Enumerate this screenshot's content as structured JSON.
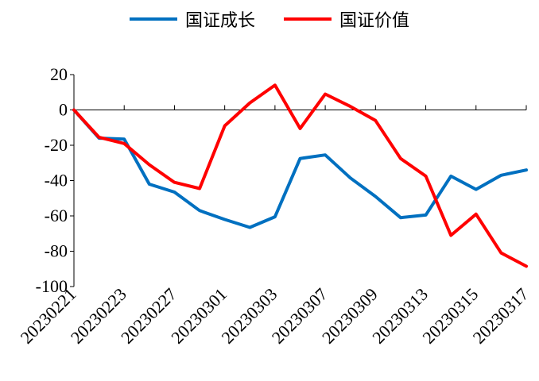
{
  "chart_data": {
    "type": "line",
    "title": "",
    "xlabel": "",
    "ylabel": "",
    "ylim": [
      -100,
      20
    ],
    "yticks": [
      20,
      0,
      -20,
      -40,
      -60,
      -80,
      -100
    ],
    "x_tick_labels": [
      "20230221",
      "20230223",
      "20230227",
      "20230301",
      "20230303",
      "20230307",
      "20230309",
      "20230313",
      "20230315",
      "20230317"
    ],
    "grid": false,
    "legend_position": "top",
    "series": [
      {
        "name": "国证成长",
        "color": "#0070C0",
        "values": [
          0,
          -16,
          -16.5,
          -42,
          -46.5,
          -57,
          -62,
          -66.5,
          -60.5,
          -27.5,
          -25.5,
          -38.5,
          -49,
          -61,
          -59.5,
          -37.5,
          -45,
          -37,
          -34
        ]
      },
      {
        "name": "国证价值",
        "color": "#FF0000",
        "values": [
          0,
          -15.5,
          -19,
          -31,
          -41,
          -44.5,
          -9,
          4,
          14,
          -10.5,
          9,
          2,
          -6,
          -27.5,
          -37.5,
          -71,
          -59,
          -81,
          -88.5
        ]
      }
    ]
  }
}
